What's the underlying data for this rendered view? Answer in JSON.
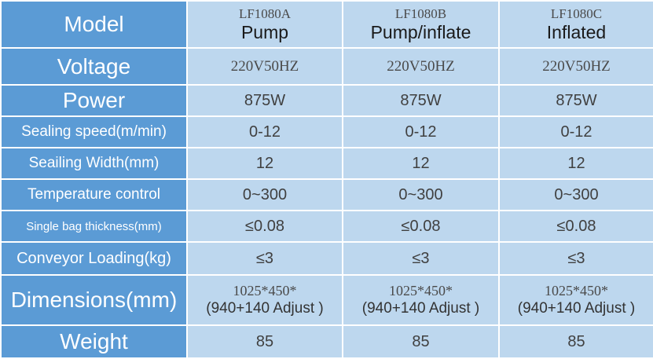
{
  "table": {
    "model": {
      "label": "Model",
      "cols": [
        {
          "code": "LF1080A",
          "type": "Pump"
        },
        {
          "code": "LF1080B",
          "type": "Pump/inflate"
        },
        {
          "code": "LF1080C",
          "type": "Inflated"
        }
      ]
    },
    "voltage": {
      "label": "Voltage",
      "values": [
        "220V50HZ",
        "220V50HZ",
        "220V50HZ"
      ]
    },
    "power": {
      "label": "Power",
      "values": [
        "875W",
        "875W",
        "875W"
      ]
    },
    "sealing_speed": {
      "label": "Sealing speed(m/min)",
      "values": [
        "0-12",
        "0-12",
        "0-12"
      ]
    },
    "sealing_width": {
      "label": "Seailing Width(mm)",
      "values": [
        "12",
        "12",
        "12"
      ]
    },
    "temperature": {
      "label": "Temperature control",
      "values": [
        "0~300",
        "0~300",
        "0~300"
      ]
    },
    "bag_thickness": {
      "label": "Single bag thickness(mm)",
      "values": [
        "≤0.08",
        "≤0.08",
        "≤0.08"
      ]
    },
    "conveyor": {
      "label": "Conveyor Loading(kg)",
      "values": [
        "≤3",
        "≤3",
        "≤3"
      ]
    },
    "dimensions": {
      "label": "Dimensions(mm)",
      "cols": [
        {
          "line1": "1025*450*",
          "line2": "(940+140 Adjust )"
        },
        {
          "line1": "1025*450*",
          "line2": "(940+140 Adjust )"
        },
        {
          "line1": "1025*450*",
          "line2": "(940+140 Adjust )"
        }
      ]
    },
    "weight": {
      "label": "Weight",
      "values": [
        "85",
        "85",
        "85"
      ]
    }
  },
  "colors": {
    "label_bg": "#5b9bd5",
    "value_bg": "#bdd7ee",
    "border": "#ffffff"
  }
}
